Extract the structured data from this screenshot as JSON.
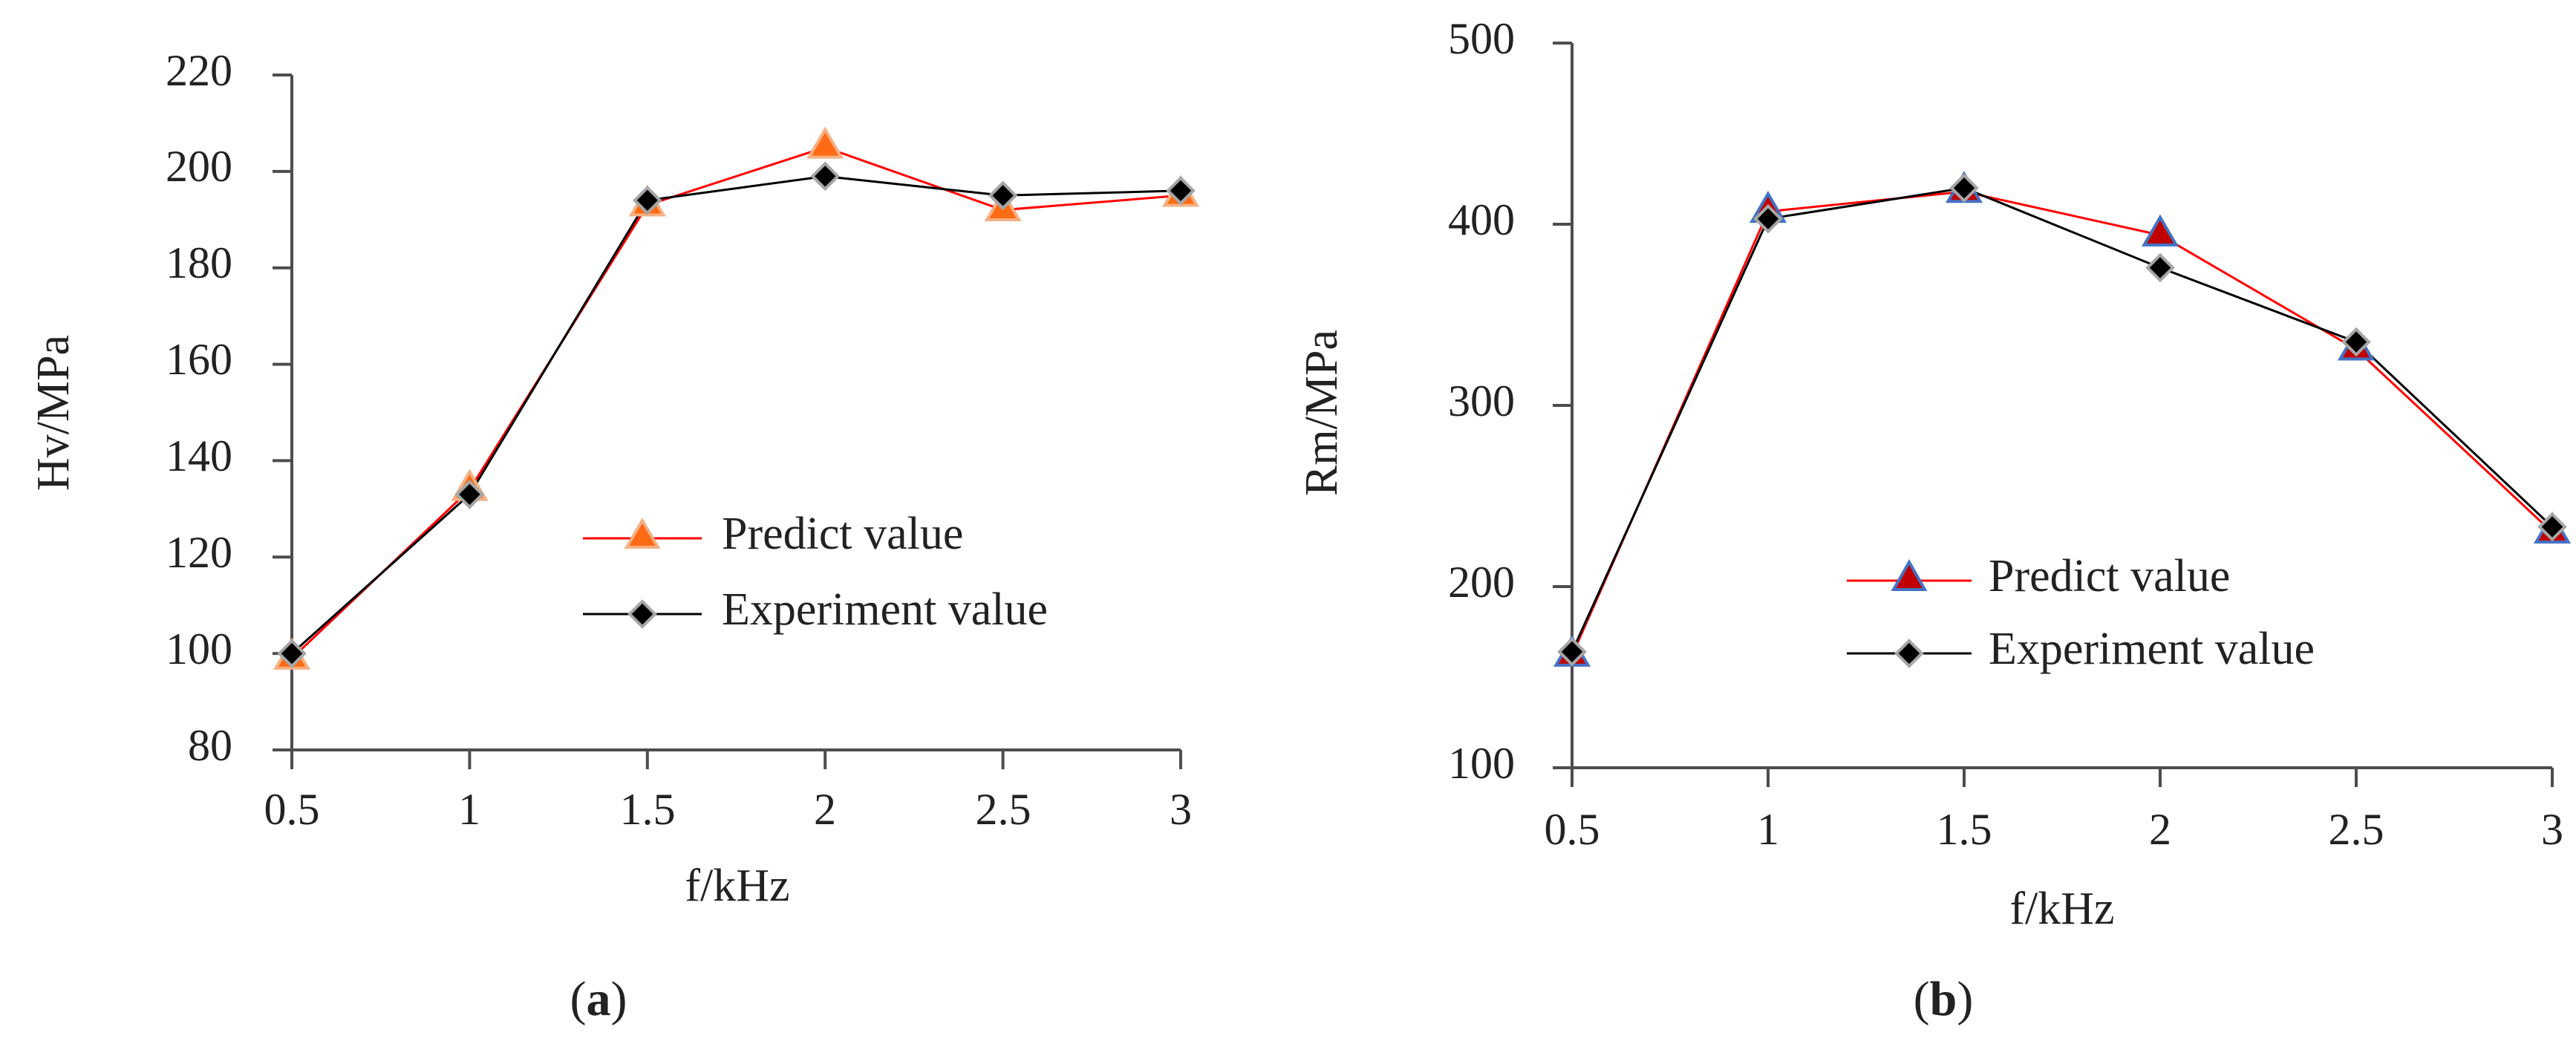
{
  "chart_data": [
    {
      "type": "line",
      "panel_label": {
        "prefix": "(",
        "letter": "a",
        "suffix": ")"
      },
      "xlabel": "f/kHz",
      "ylabel": "Hv/MPa",
      "x": [
        0.5,
        1,
        1.5,
        2,
        2.5,
        3
      ],
      "x_tick_labels": [
        "0.5",
        "1",
        "1.5",
        "2",
        "2.5",
        "3"
      ],
      "ylim": [
        80,
        220
      ],
      "y_ticks": [
        80,
        100,
        120,
        140,
        160,
        180,
        200,
        220
      ],
      "y_tick_labels": [
        "80",
        "100",
        "120",
        "140",
        "160",
        "180",
        "200",
        "220"
      ],
      "grid": false,
      "legend_position": "lower-right",
      "series": [
        {
          "name": "Predict value",
          "values": [
            99,
            134,
            193,
            205,
            192,
            195
          ],
          "line_color": "#ff0000",
          "marker": "triangle",
          "marker_fill": "#ff6a14",
          "marker_stroke": "#f4b183"
        },
        {
          "name": "Experiment value",
          "values": [
            100,
            133,
            194,
            199,
            195,
            196
          ],
          "line_color": "#000000",
          "marker": "diamond",
          "marker_fill": "#000000",
          "marker_stroke": "#a6a6a6"
        }
      ]
    },
    {
      "type": "line",
      "panel_label": {
        "prefix": "(",
        "letter": "b",
        "suffix": ")"
      },
      "xlabel": "f/kHz",
      "ylabel": "Rm/MPa",
      "x": [
        0.5,
        1,
        1.5,
        2,
        2.5,
        3
      ],
      "x_tick_labels": [
        "0.5",
        "1",
        "1.5",
        "2",
        "2.5",
        "3"
      ],
      "ylim": [
        100,
        500
      ],
      "y_ticks": [
        100,
        200,
        300,
        400,
        500
      ],
      "y_tick_labels": [
        "100",
        "200",
        "300",
        "400",
        "500"
      ],
      "grid": false,
      "legend_position": "lower-center",
      "series": [
        {
          "name": "Predict value",
          "values": [
            162,
            407,
            418,
            394,
            331,
            230
          ],
          "line_color": "#ff0000",
          "marker": "triangle",
          "marker_fill": "#c00000",
          "marker_stroke": "#4472c4"
        },
        {
          "name": "Experiment value",
          "values": [
            164,
            403,
            420,
            376,
            335,
            233
          ],
          "line_color": "#000000",
          "marker": "diamond",
          "marker_fill": "#000000",
          "marker_stroke": "#a6a6a6"
        }
      ]
    }
  ]
}
